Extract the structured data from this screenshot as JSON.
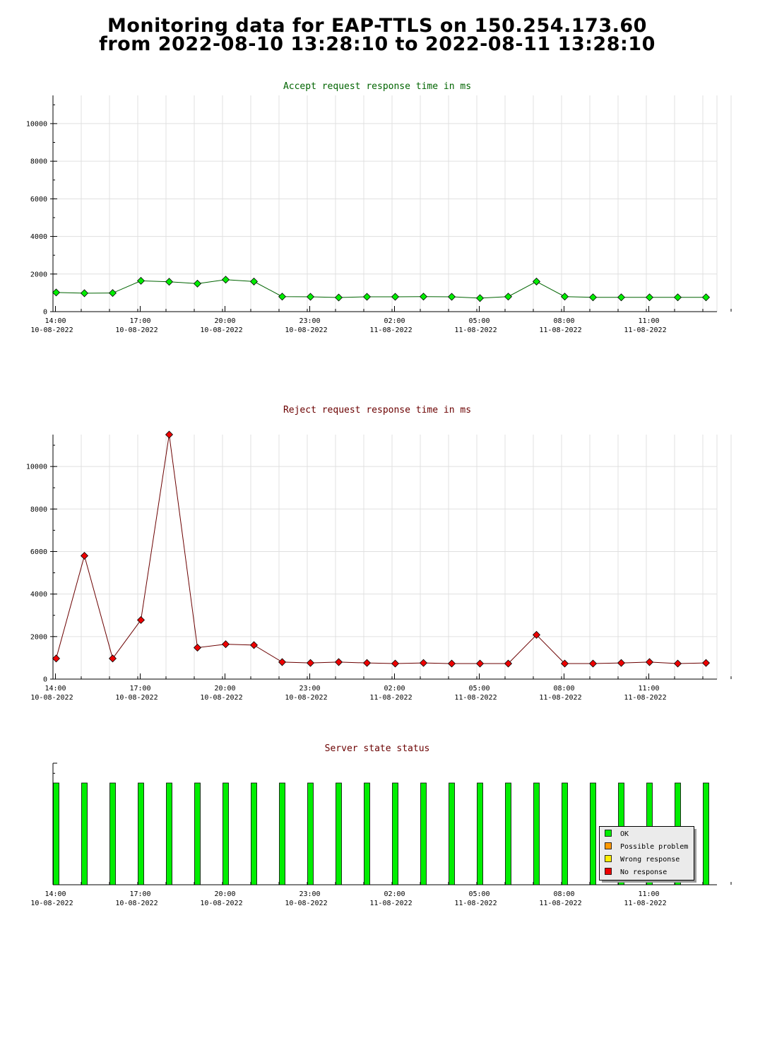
{
  "header": {
    "line1": "Monitoring data for EAP-TTLS on 150.254.173.60",
    "line2": "from 2022-08-10 13:28:10 to 2022-08-11 13:28:10"
  },
  "colors": {
    "accept_line": "#006400",
    "accept_marker": "#00ee00",
    "reject_line": "#6b0000",
    "reject_marker": "#ee0000",
    "status_ok": "#00ee00",
    "status_possible_problem": "#ff9900",
    "status_wrong_response": "#ffee00",
    "status_no_response": "#ee0000",
    "grid": "#e0e0e0"
  },
  "x_ticks": [
    {
      "time": "14:00",
      "date": "10-08-2022"
    },
    {
      "time": "17:00",
      "date": "10-08-2022"
    },
    {
      "time": "20:00",
      "date": "10-08-2022"
    },
    {
      "time": "23:00",
      "date": "10-08-2022"
    },
    {
      "time": "02:00",
      "date": "11-08-2022"
    },
    {
      "time": "05:00",
      "date": "11-08-2022"
    },
    {
      "time": "08:00",
      "date": "11-08-2022"
    },
    {
      "time": "11:00",
      "date": "11-08-2022"
    }
  ],
  "chart_data": [
    {
      "type": "line",
      "title": "Accept request response time in ms",
      "x": [
        "2022-08-10 14:00",
        "2022-08-10 15:00",
        "2022-08-10 16:00",
        "2022-08-10 17:00",
        "2022-08-10 18:00",
        "2022-08-10 19:00",
        "2022-08-10 20:00",
        "2022-08-10 21:00",
        "2022-08-10 22:00",
        "2022-08-10 23:00",
        "2022-08-11 00:00",
        "2022-08-11 01:00",
        "2022-08-11 02:00",
        "2022-08-11 03:00",
        "2022-08-11 04:00",
        "2022-08-11 05:00",
        "2022-08-11 06:00",
        "2022-08-11 07:00",
        "2022-08-11 08:00",
        "2022-08-11 09:00",
        "2022-08-11 10:00",
        "2022-08-11 11:00",
        "2022-08-11 12:00",
        "2022-08-11 13:00"
      ],
      "values": [
        1020,
        980,
        990,
        1640,
        1590,
        1490,
        1700,
        1600,
        800,
        790,
        750,
        790,
        790,
        800,
        790,
        720,
        800,
        1600,
        800,
        760,
        760,
        760,
        760,
        760
      ],
      "yticks": [
        0,
        2000,
        4000,
        6000,
        8000,
        10000
      ],
      "ylim": [
        0,
        11500
      ],
      "grid": true
    },
    {
      "type": "line",
      "title": "Reject request response time in ms",
      "x": [
        "2022-08-10 14:00",
        "2022-08-10 15:00",
        "2022-08-10 16:00",
        "2022-08-10 17:00",
        "2022-08-10 18:00",
        "2022-08-10 19:00",
        "2022-08-10 20:00",
        "2022-08-10 21:00",
        "2022-08-10 22:00",
        "2022-08-10 23:00",
        "2022-08-11 00:00",
        "2022-08-11 01:00",
        "2022-08-11 02:00",
        "2022-08-11 03:00",
        "2022-08-11 04:00",
        "2022-08-11 05:00",
        "2022-08-11 06:00",
        "2022-08-11 07:00",
        "2022-08-11 08:00",
        "2022-08-11 09:00",
        "2022-08-11 10:00",
        "2022-08-11 11:00",
        "2022-08-11 12:00",
        "2022-08-11 13:00"
      ],
      "values": [
        970,
        5800,
        970,
        2780,
        11500,
        1480,
        1640,
        1600,
        800,
        760,
        800,
        760,
        730,
        760,
        730,
        730,
        730,
        2080,
        730,
        730,
        760,
        800,
        730,
        760
      ],
      "yticks": [
        0,
        2000,
        4000,
        6000,
        8000,
        10000
      ],
      "ylim": [
        0,
        11500
      ],
      "grid": true
    },
    {
      "type": "bar",
      "title": "Server state status",
      "x": [
        "2022-08-10 14:00",
        "2022-08-10 15:00",
        "2022-08-10 16:00",
        "2022-08-10 17:00",
        "2022-08-10 18:00",
        "2022-08-10 19:00",
        "2022-08-10 20:00",
        "2022-08-10 21:00",
        "2022-08-10 22:00",
        "2022-08-10 23:00",
        "2022-08-11 00:00",
        "2022-08-11 01:00",
        "2022-08-11 02:00",
        "2022-08-11 03:00",
        "2022-08-11 04:00",
        "2022-08-11 05:00",
        "2022-08-11 06:00",
        "2022-08-11 07:00",
        "2022-08-11 08:00",
        "2022-08-11 09:00",
        "2022-08-11 10:00",
        "2022-08-11 11:00",
        "2022-08-11 12:00",
        "2022-08-11 13:00"
      ],
      "status": [
        "OK",
        "OK",
        "OK",
        "OK",
        "OK",
        "OK",
        "OK",
        "OK",
        "OK",
        "OK",
        "OK",
        "OK",
        "OK",
        "OK",
        "OK",
        "OK",
        "OK",
        "OK",
        "OK",
        "OK",
        "OK",
        "OK",
        "OK",
        "OK"
      ],
      "legend": [
        "OK",
        "Possible problem",
        "Wrong response",
        "No response"
      ],
      "legend_placement": "bottom-right",
      "grid": false
    }
  ]
}
